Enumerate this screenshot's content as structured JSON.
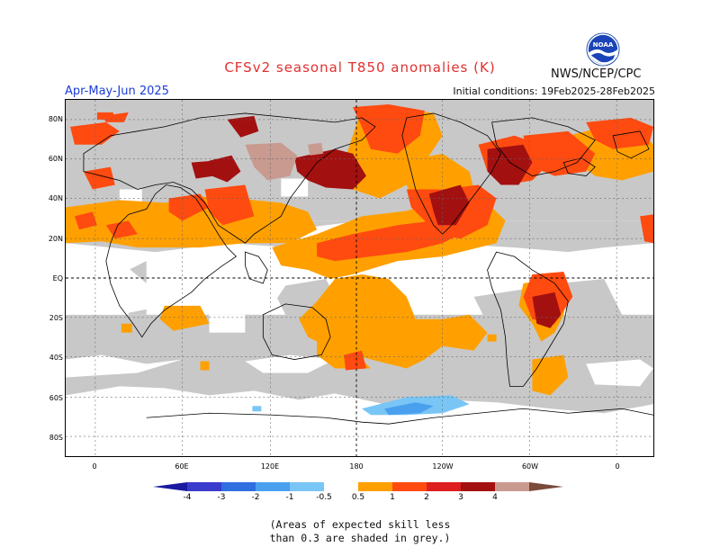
{
  "header": {
    "title": "CFSv2 seasonal T850 anomalies (K)",
    "agency": "NWS/NCEP/CPC",
    "season": "Apr-May-Jun 2025",
    "initial_conditions": "Initial conditions: 19Feb2025-28Feb2025",
    "logo_text": "NOAA"
  },
  "axes": {
    "lat_labels": [
      "80N",
      "60N",
      "40N",
      "20N",
      "EQ",
      "20S",
      "40S",
      "60S",
      "80S"
    ],
    "lon_labels": [
      "0",
      "60E",
      "120E",
      "180",
      "120W",
      "60W",
      "0"
    ]
  },
  "colorbar": {
    "labels": [
      "-4",
      "-3",
      "-2",
      "-1",
      "-0.5",
      "0.5",
      "1",
      "2",
      "3",
      "4"
    ],
    "colors": [
      "#1a1aa0",
      "#3a3acc",
      "#2f6fe0",
      "#4aa0ee",
      "#79c6f6",
      "#ffffff",
      "#ffa000",
      "#ff4a10",
      "#dd1f1f",
      "#a31010",
      "#c89a90",
      "#7a4a3a"
    ]
  },
  "legend_colors": {
    "grey": "#c8c8c8",
    "orange": "#ffa000",
    "red_orange": "#ff4a10",
    "red": "#dd1f1f",
    "dark_red": "#a31010",
    "rose": "#c89a90",
    "light_blue": "#79c6f6",
    "blue": "#4aa0ee"
  },
  "note": {
    "line1": "(Areas of expected skill less",
    "line2": "than 0.3 are shaded in grey.)"
  }
}
